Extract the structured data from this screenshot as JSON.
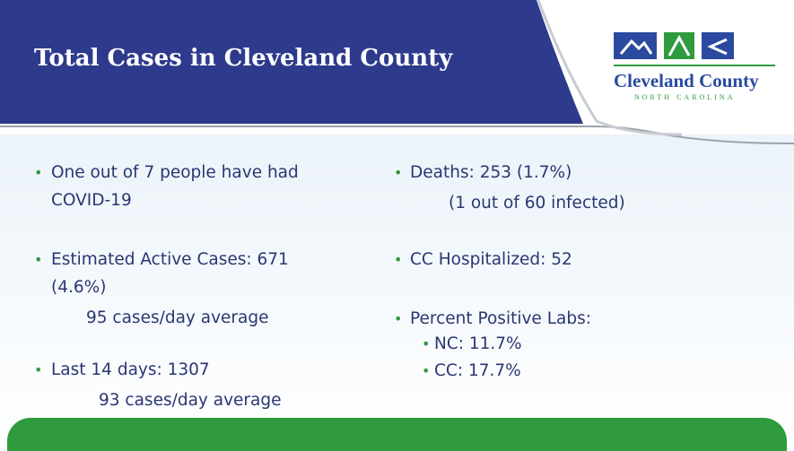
{
  "header": {
    "title": "Total Cases in Cleveland County"
  },
  "logo": {
    "name": "Cleveland County",
    "state": "NORTH CAROLINA"
  },
  "left": [
    {
      "lines": [
        "One out of 7 people have had",
        "COVID-19"
      ]
    },
    {
      "lines": [
        "Estimated Active Cases: 671",
        "(4.6%)"
      ],
      "sub": "95 cases/day average"
    },
    {
      "lines": [
        "Last 14 days: 1307"
      ],
      "sub": "93 cases/day average"
    }
  ],
  "right": [
    {
      "lines": [
        "Deaths: 253 (1.7%)"
      ],
      "sub": "(1 out of 60 infected)"
    },
    {
      "lines": [
        "CC Hospitalized: 52"
      ]
    },
    {
      "lines": [
        "Percent Positive Labs:"
      ],
      "items": [
        "NC: 11.7%",
        "CC: 17.7%"
      ]
    }
  ]
}
